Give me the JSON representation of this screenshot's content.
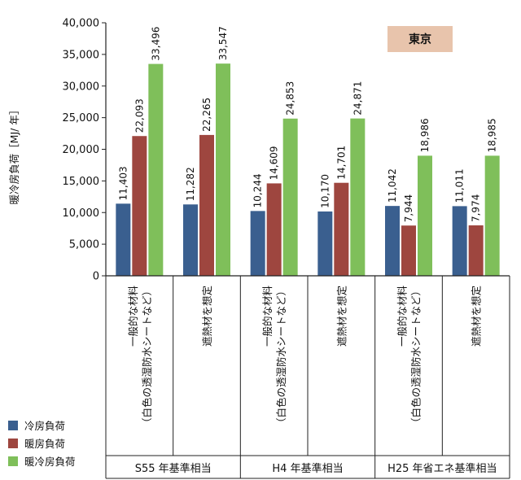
{
  "chart_data": {
    "type": "bar",
    "ylabel": "暖冷房負荷［MJ/ 年］",
    "ylim": [
      0,
      40000
    ],
    "yticks": [
      "0",
      "5,000",
      "10,000",
      "15,000",
      "20,000",
      "25,000",
      "30,000",
      "35,000",
      "40,000"
    ],
    "ytick_values": [
      0,
      5000,
      10000,
      15000,
      20000,
      25000,
      30000,
      35000,
      40000
    ],
    "annotation": "東京",
    "groups": [
      "S55 年基準相当",
      "H4 年基準相当",
      "H25 年省エネ基準相当"
    ],
    "categories": [
      {
        "line1": "一般的な材料",
        "line2": "（白色の透湿防水シートなど）"
      },
      {
        "line1": "遮熱材を想定",
        "line2": ""
      },
      {
        "line1": "一般的な材料",
        "line2": "（白色の透湿防水シートなど）"
      },
      {
        "line1": "遮熱材を想定",
        "line2": ""
      },
      {
        "line1": "一般的な材料",
        "line2": "（白色の透湿防水シートなど）"
      },
      {
        "line1": "遮熱材を想定",
        "line2": ""
      }
    ],
    "series": [
      {
        "name": "冷房負荷",
        "color": "#3a5f8f",
        "values": [
          11403,
          11282,
          10244,
          10170,
          11042,
          11011
        ],
        "labels": [
          "11,403",
          "11,282",
          "10,244",
          "10,170",
          "11,042",
          "11,011"
        ]
      },
      {
        "name": "暖房負荷",
        "color": "#9e463f",
        "values": [
          22093,
          22265,
          14609,
          14701,
          7944,
          7974
        ],
        "labels": [
          "22,093",
          "22,265",
          "14,609",
          "14,701",
          "7,944",
          "7,974"
        ]
      },
      {
        "name": "暖冷房負荷",
        "color": "#7fbf5a",
        "values": [
          33496,
          33547,
          24853,
          24871,
          18986,
          18985
        ],
        "labels": [
          "33,496",
          "33,547",
          "24,853",
          "24,871",
          "18,986",
          "18,985"
        ]
      }
    ],
    "grid": false,
    "legend_position": "bottom-left"
  }
}
